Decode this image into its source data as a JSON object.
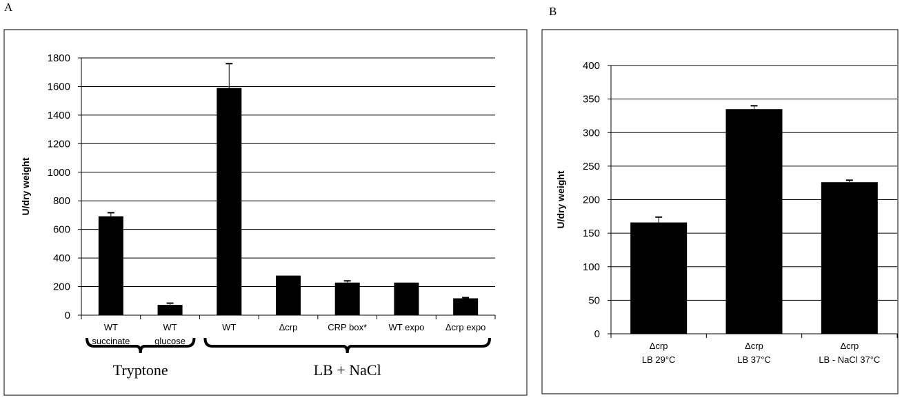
{
  "panels": {
    "a_label": "A",
    "b_label": "B"
  },
  "chart_data": [
    {
      "type": "bar",
      "ylabel": "U/dry weight",
      "ylim": [
        0,
        1800
      ],
      "yticks": [
        0,
        200,
        400,
        600,
        800,
        1000,
        1200,
        1400,
        1600,
        1800
      ],
      "grid": true,
      "categories": [
        [
          "WT",
          "succinate"
        ],
        [
          "WT",
          "glucose"
        ],
        [
          "WT"
        ],
        [
          "Δcrp"
        ],
        [
          "CRP box*"
        ],
        [
          "WT expo"
        ],
        [
          "Δcrp  expo"
        ]
      ],
      "values": [
        692,
        72,
        1590,
        277,
        228,
        228,
        118
      ],
      "errors": [
        25,
        12,
        170,
        0,
        12,
        0,
        5
      ],
      "groups": [
        {
          "label": "Tryptone",
          "from": 0,
          "to": 1
        },
        {
          "label": "LB + NaCl",
          "from": 2,
          "to": 6
        }
      ],
      "bar_color": "#000000"
    },
    {
      "type": "bar",
      "ylabel": "U/dry weight",
      "ylim": [
        0,
        400
      ],
      "yticks": [
        0,
        50,
        100,
        150,
        200,
        250,
        300,
        350,
        400
      ],
      "grid": true,
      "categories": [
        [
          "Δcrp",
          "LB 29°C"
        ],
        [
          "Δcrp",
          "LB 37°C"
        ],
        [
          "Δcrp",
          "LB - NaCl  37°C"
        ]
      ],
      "values": [
        166,
        335,
        226
      ],
      "errors": [
        8,
        5,
        3
      ],
      "bar_color": "#000000"
    }
  ]
}
